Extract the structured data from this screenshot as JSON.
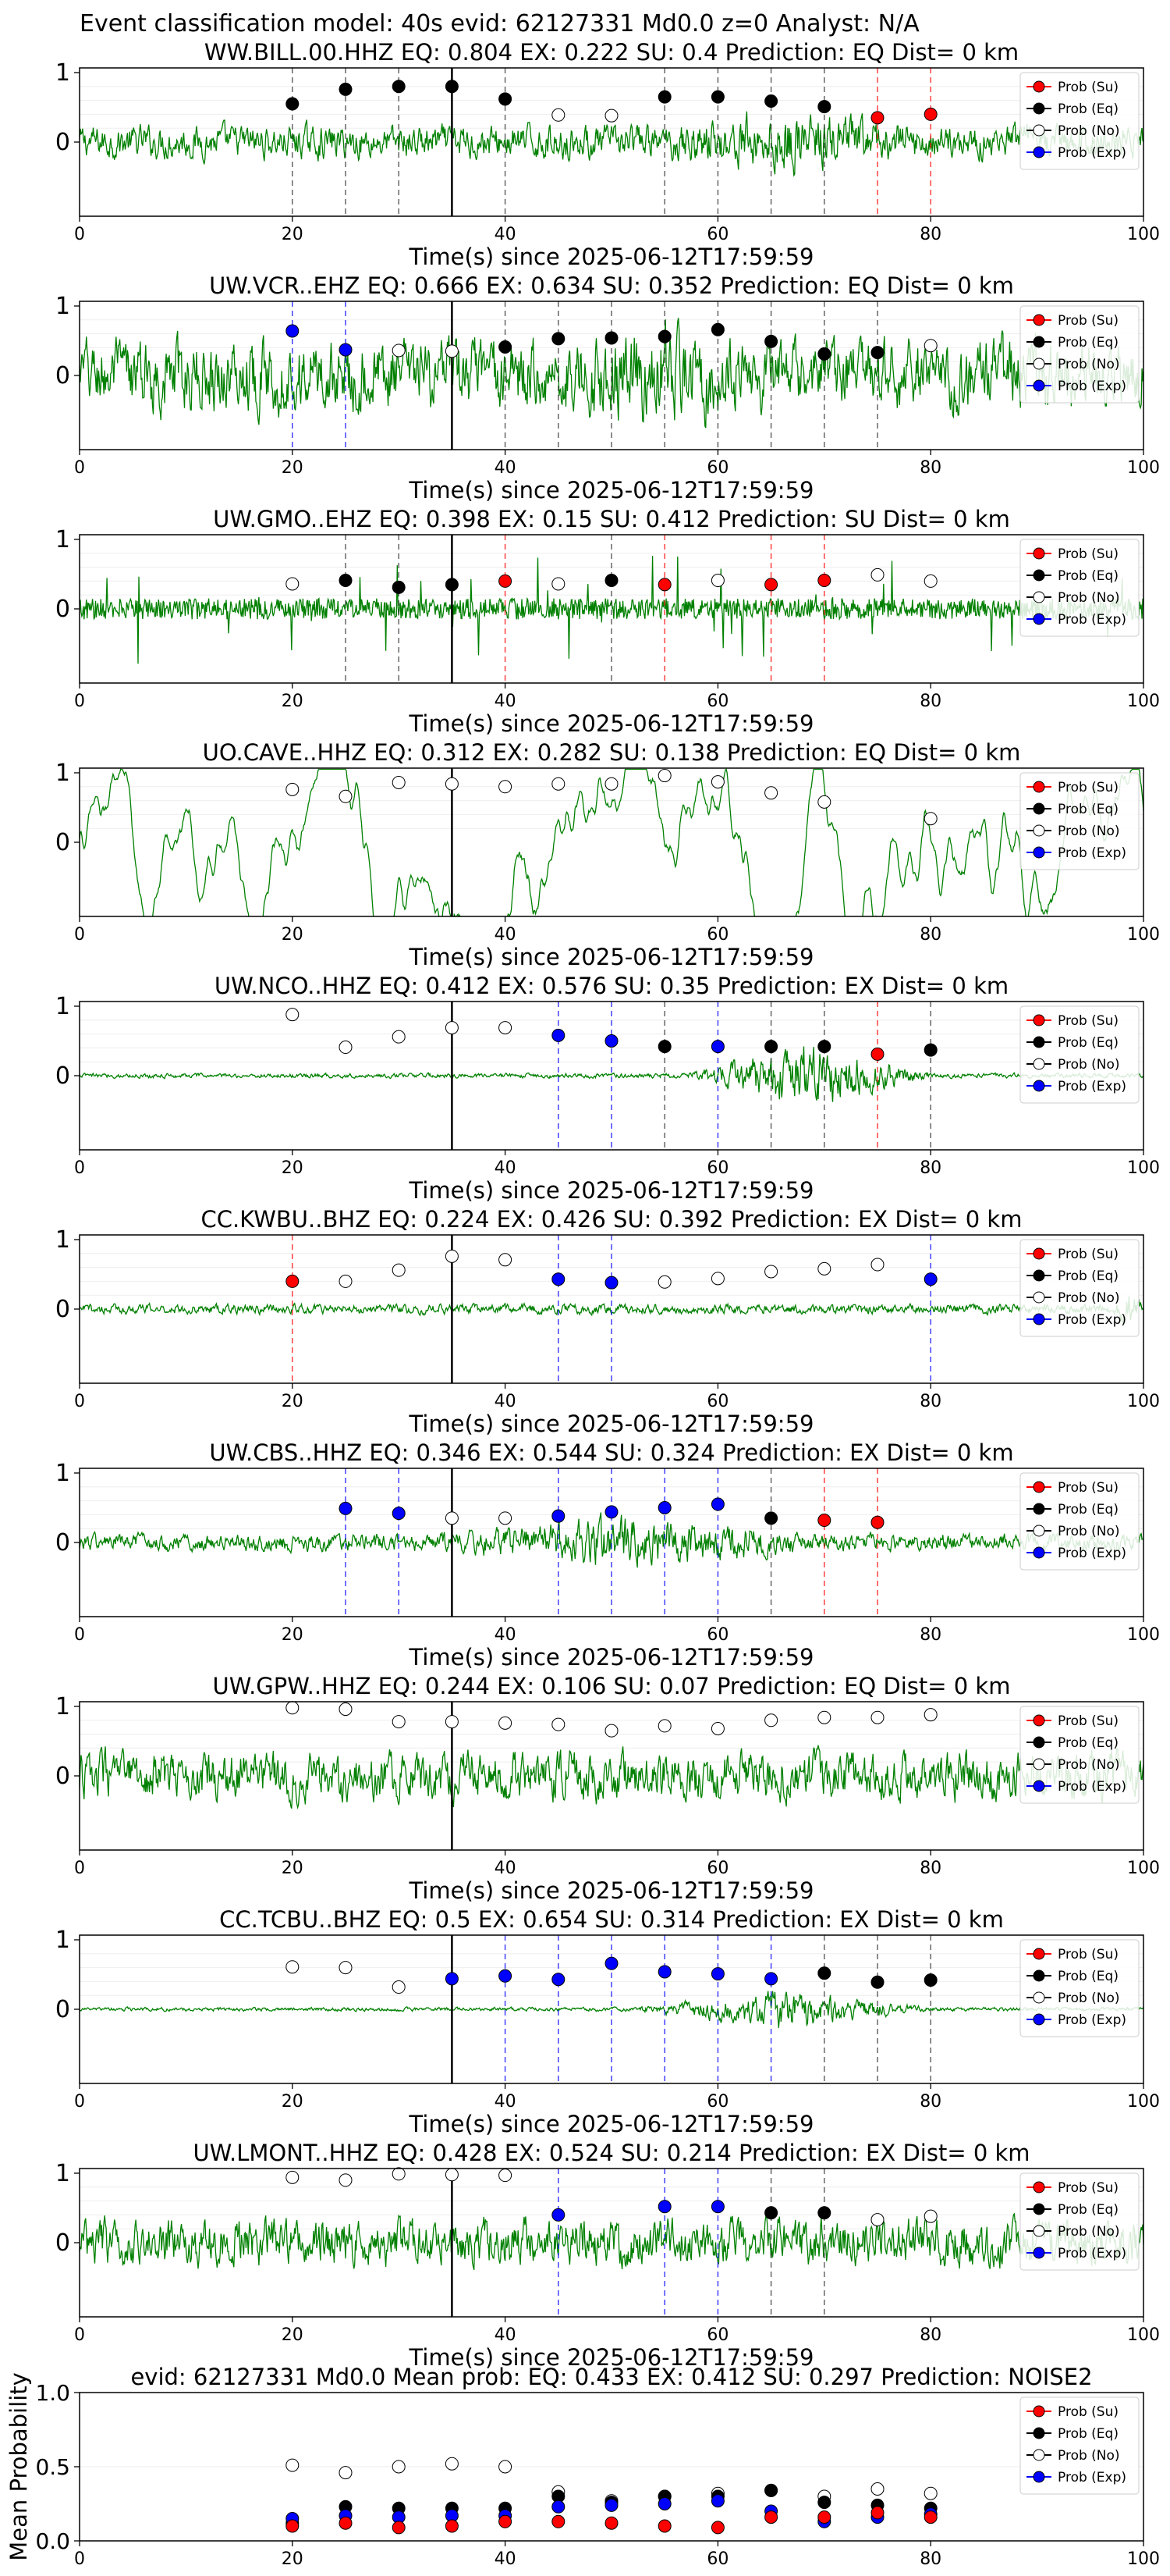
{
  "suptitle": "Event classification model: 40s evid: 62127331 Md0.0 z=0 Analyst: N/A",
  "legend_labels": [
    "Prob (Su)",
    "Prob (Eq)",
    "Prob (No)",
    "Prob (Exp)"
  ],
  "colors": {
    "su": "#ff0000",
    "eq": "#000000",
    "no": "#ffffff",
    "exp": "#0000ff",
    "waveform": "#008000",
    "origin_line": "#000000"
  },
  "chart_data": [
    {
      "type": "line",
      "title": "WW.BILL.00.HHZ   EQ: 0.804  EX: 0.222  SU: 0.4   Prediction: EQ    Dist= 0 km",
      "xlabel": "Time(s) since 2025-06-12T17:59:59",
      "xlim": [
        0,
        100
      ],
      "xticks": [
        0,
        20,
        40,
        60,
        80,
        100
      ],
      "yticks": [
        0,
        1
      ],
      "waveform": {
        "amplitude": 0.35,
        "style": "noisy",
        "burst": [
          55,
          78,
          1.9
        ]
      },
      "origin_time": 35,
      "points": [
        {
          "t": 20,
          "p": 0.55,
          "cls": "eq"
        },
        {
          "t": 25,
          "p": 0.76,
          "cls": "eq"
        },
        {
          "t": 30,
          "p": 0.8,
          "cls": "eq"
        },
        {
          "t": 35,
          "p": 0.8,
          "cls": "eq"
        },
        {
          "t": 40,
          "p": 0.62,
          "cls": "eq"
        },
        {
          "t": 45,
          "p": 0.39,
          "cls": "no"
        },
        {
          "t": 50,
          "p": 0.38,
          "cls": "no"
        },
        {
          "t": 55,
          "p": 0.65,
          "cls": "eq"
        },
        {
          "t": 60,
          "p": 0.65,
          "cls": "eq"
        },
        {
          "t": 65,
          "p": 0.59,
          "cls": "eq"
        },
        {
          "t": 70,
          "p": 0.51,
          "cls": "eq"
        },
        {
          "t": 75,
          "p": 0.35,
          "cls": "su"
        },
        {
          "t": 80,
          "p": 0.4,
          "cls": "su"
        }
      ]
    },
    {
      "type": "line",
      "title": "UW.VCR..EHZ   EQ: 0.666  EX: 0.634  SU: 0.352   Prediction: EQ    Dist= 0 km",
      "xlabel": "Time(s) since 2025-06-12T17:59:59",
      "xlim": [
        0,
        100
      ],
      "xticks": [
        0,
        20,
        40,
        60,
        80,
        100
      ],
      "yticks": [
        0,
        1
      ],
      "waveform": {
        "amplitude": 0.75,
        "style": "noisy",
        "burst": [
          45,
          65,
          1.4
        ]
      },
      "origin_time": 35,
      "points": [
        {
          "t": 20,
          "p": 0.64,
          "cls": "exp"
        },
        {
          "t": 25,
          "p": 0.37,
          "cls": "exp"
        },
        {
          "t": 30,
          "p": 0.36,
          "cls": "no"
        },
        {
          "t": 35,
          "p": 0.35,
          "cls": "no"
        },
        {
          "t": 40,
          "p": 0.41,
          "cls": "eq"
        },
        {
          "t": 45,
          "p": 0.53,
          "cls": "eq"
        },
        {
          "t": 50,
          "p": 0.54,
          "cls": "eq"
        },
        {
          "t": 55,
          "p": 0.56,
          "cls": "eq"
        },
        {
          "t": 60,
          "p": 0.66,
          "cls": "eq"
        },
        {
          "t": 65,
          "p": 0.49,
          "cls": "eq"
        },
        {
          "t": 70,
          "p": 0.31,
          "cls": "eq"
        },
        {
          "t": 75,
          "p": 0.33,
          "cls": "eq"
        },
        {
          "t": 80,
          "p": 0.43,
          "cls": "no"
        }
      ]
    },
    {
      "type": "line",
      "title": "UW.GMO..EHZ   EQ: 0.398  EX: 0.15  SU: 0.412   Prediction: SU    Dist= 0 km",
      "xlabel": "Time(s) since 2025-06-12T17:59:59",
      "xlim": [
        0,
        100
      ],
      "xticks": [
        0,
        20,
        40,
        60,
        80,
        100
      ],
      "yticks": [
        0,
        1
      ],
      "waveform": {
        "amplitude": 0.3,
        "style": "spiky",
        "burst": [
          0,
          0,
          1
        ]
      },
      "origin_time": 35,
      "points": [
        {
          "t": 20,
          "p": 0.36,
          "cls": "no"
        },
        {
          "t": 25,
          "p": 0.41,
          "cls": "eq"
        },
        {
          "t": 30,
          "p": 0.31,
          "cls": "eq"
        },
        {
          "t": 35,
          "p": 0.35,
          "cls": "eq"
        },
        {
          "t": 40,
          "p": 0.4,
          "cls": "su"
        },
        {
          "t": 45,
          "p": 0.36,
          "cls": "no"
        },
        {
          "t": 50,
          "p": 0.41,
          "cls": "eq"
        },
        {
          "t": 55,
          "p": 0.35,
          "cls": "su"
        },
        {
          "t": 60,
          "p": 0.41,
          "cls": "no"
        },
        {
          "t": 65,
          "p": 0.35,
          "cls": "su"
        },
        {
          "t": 70,
          "p": 0.41,
          "cls": "su"
        },
        {
          "t": 75,
          "p": 0.49,
          "cls": "no"
        },
        {
          "t": 80,
          "p": 0.4,
          "cls": "no"
        }
      ]
    },
    {
      "type": "line",
      "title": "UO.CAVE..HHZ   EQ: 0.312  EX: 0.282  SU: 0.138   Prediction: EQ    Dist= 0 km",
      "xlabel": "Time(s) since 2025-06-12T17:59:59",
      "xlim": [
        0,
        100
      ],
      "xticks": [
        0,
        20,
        40,
        60,
        80,
        100
      ],
      "yticks": [
        0,
        1
      ],
      "waveform": {
        "amplitude": 0.45,
        "style": "smooth",
        "burst": [
          33,
          45,
          1.6
        ]
      },
      "origin_time": 35,
      "points": [
        {
          "t": 20,
          "p": 0.76,
          "cls": "no"
        },
        {
          "t": 25,
          "p": 0.66,
          "cls": "no"
        },
        {
          "t": 30,
          "p": 0.86,
          "cls": "no"
        },
        {
          "t": 35,
          "p": 0.84,
          "cls": "no"
        },
        {
          "t": 40,
          "p": 0.8,
          "cls": "no"
        },
        {
          "t": 45,
          "p": 0.84,
          "cls": "no"
        },
        {
          "t": 50,
          "p": 0.84,
          "cls": "no"
        },
        {
          "t": 55,
          "p": 0.96,
          "cls": "no"
        },
        {
          "t": 60,
          "p": 0.87,
          "cls": "no"
        },
        {
          "t": 65,
          "p": 0.71,
          "cls": "no"
        },
        {
          "t": 70,
          "p": 0.58,
          "cls": "no"
        },
        {
          "t": 80,
          "p": 0.34,
          "cls": "no"
        }
      ]
    },
    {
      "type": "line",
      "title": "UW.NCO..HHZ   EQ: 0.412  EX: 0.576  SU: 0.35   Prediction: EX    Dist= 0 km",
      "xlabel": "Time(s) since 2025-06-12T17:59:59",
      "xlim": [
        0,
        100
      ],
      "xticks": [
        0,
        20,
        40,
        60,
        80,
        100
      ],
      "yticks": [
        0,
        1
      ],
      "waveform": {
        "amplitude": 0.05,
        "style": "noisy",
        "burst": [
          57,
          80,
          14
        ]
      },
      "origin_time": 35,
      "points": [
        {
          "t": 20,
          "p": 0.88,
          "cls": "no"
        },
        {
          "t": 25,
          "p": 0.41,
          "cls": "no"
        },
        {
          "t": 30,
          "p": 0.56,
          "cls": "no"
        },
        {
          "t": 35,
          "p": 0.69,
          "cls": "no"
        },
        {
          "t": 40,
          "p": 0.69,
          "cls": "no"
        },
        {
          "t": 45,
          "p": 0.58,
          "cls": "exp"
        },
        {
          "t": 50,
          "p": 0.5,
          "cls": "exp"
        },
        {
          "t": 55,
          "p": 0.42,
          "cls": "eq"
        },
        {
          "t": 60,
          "p": 0.42,
          "cls": "exp"
        },
        {
          "t": 65,
          "p": 0.42,
          "cls": "eq"
        },
        {
          "t": 70,
          "p": 0.42,
          "cls": "eq"
        },
        {
          "t": 75,
          "p": 0.31,
          "cls": "su"
        },
        {
          "t": 80,
          "p": 0.37,
          "cls": "eq"
        }
      ]
    },
    {
      "type": "line",
      "title": "CC.KWBU..BHZ   EQ: 0.224  EX: 0.426  SU: 0.392   Prediction: EX    Dist= 0 km",
      "xlabel": "Time(s) since 2025-06-12T17:59:59",
      "xlim": [
        0,
        100
      ],
      "xticks": [
        0,
        20,
        40,
        60,
        80,
        100
      ],
      "yticks": [
        0,
        1
      ],
      "waveform": {
        "amplitude": 0.1,
        "style": "noisy",
        "burst": [
          97,
          100,
          4
        ]
      },
      "origin_time": 35,
      "points": [
        {
          "t": 20,
          "p": 0.4,
          "cls": "su"
        },
        {
          "t": 25,
          "p": 0.4,
          "cls": "no"
        },
        {
          "t": 30,
          "p": 0.56,
          "cls": "no"
        },
        {
          "t": 35,
          "p": 0.76,
          "cls": "no"
        },
        {
          "t": 40,
          "p": 0.71,
          "cls": "no"
        },
        {
          "t": 45,
          "p": 0.43,
          "cls": "exp"
        },
        {
          "t": 50,
          "p": 0.38,
          "cls": "exp"
        },
        {
          "t": 55,
          "p": 0.39,
          "cls": "no"
        },
        {
          "t": 60,
          "p": 0.44,
          "cls": "no"
        },
        {
          "t": 65,
          "p": 0.54,
          "cls": "no"
        },
        {
          "t": 70,
          "p": 0.58,
          "cls": "no"
        },
        {
          "t": 75,
          "p": 0.64,
          "cls": "no"
        },
        {
          "t": 80,
          "p": 0.43,
          "cls": "exp"
        }
      ]
    },
    {
      "type": "line",
      "title": "UW.CBS..HHZ   EQ: 0.346  EX: 0.544  SU: 0.324   Prediction: EX    Dist= 0 km",
      "xlabel": "Time(s) since 2025-06-12T17:59:59",
      "xlim": [
        0,
        100
      ],
      "xticks": [
        0,
        20,
        40,
        60,
        80,
        100
      ],
      "yticks": [
        0,
        1
      ],
      "waveform": {
        "amplitude": 0.18,
        "style": "noisy",
        "burst": [
          33,
          70,
          3
        ]
      },
      "origin_time": 35,
      "points": [
        {
          "t": 25,
          "p": 0.49,
          "cls": "exp"
        },
        {
          "t": 30,
          "p": 0.42,
          "cls": "exp"
        },
        {
          "t": 35,
          "p": 0.35,
          "cls": "no"
        },
        {
          "t": 40,
          "p": 0.35,
          "cls": "no"
        },
        {
          "t": 45,
          "p": 0.38,
          "cls": "exp"
        },
        {
          "t": 50,
          "p": 0.44,
          "cls": "exp"
        },
        {
          "t": 55,
          "p": 0.5,
          "cls": "exp"
        },
        {
          "t": 60,
          "p": 0.55,
          "cls": "exp"
        },
        {
          "t": 65,
          "p": 0.35,
          "cls": "eq"
        },
        {
          "t": 70,
          "p": 0.32,
          "cls": "su"
        },
        {
          "t": 75,
          "p": 0.29,
          "cls": "su"
        }
      ]
    },
    {
      "type": "line",
      "title": "UW.GPW..HHZ   EQ: 0.244  EX: 0.106  SU: 0.07   Prediction: EQ    Dist= 0 km",
      "xlabel": "Time(s) since 2025-06-12T17:59:59",
      "xlim": [
        0,
        100
      ],
      "xticks": [
        0,
        20,
        40,
        60,
        80,
        100
      ],
      "yticks": [
        0,
        1
      ],
      "waveform": {
        "amplitude": 0.5,
        "style": "noisy",
        "burst": [
          0,
          0,
          1
        ]
      },
      "origin_time": 35,
      "points": [
        {
          "t": 20,
          "p": 0.98,
          "cls": "no"
        },
        {
          "t": 25,
          "p": 0.96,
          "cls": "no"
        },
        {
          "t": 30,
          "p": 0.78,
          "cls": "no"
        },
        {
          "t": 35,
          "p": 0.78,
          "cls": "no"
        },
        {
          "t": 40,
          "p": 0.76,
          "cls": "no"
        },
        {
          "t": 45,
          "p": 0.74,
          "cls": "no"
        },
        {
          "t": 50,
          "p": 0.65,
          "cls": "no"
        },
        {
          "t": 55,
          "p": 0.72,
          "cls": "no"
        },
        {
          "t": 60,
          "p": 0.68,
          "cls": "no"
        },
        {
          "t": 65,
          "p": 0.8,
          "cls": "no"
        },
        {
          "t": 70,
          "p": 0.84,
          "cls": "no"
        },
        {
          "t": 75,
          "p": 0.84,
          "cls": "no"
        },
        {
          "t": 80,
          "p": 0.88,
          "cls": "no"
        }
      ]
    },
    {
      "type": "line",
      "title": "CC.TCBU..BHZ   EQ: 0.5  EX: 0.654  SU: 0.314   Prediction: EX    Dist= 0 km",
      "xlabel": "Time(s) since 2025-06-12T17:59:59",
      "xlim": [
        0,
        100
      ],
      "xticks": [
        0,
        20,
        40,
        60,
        80,
        100
      ],
      "yticks": [
        0,
        1
      ],
      "waveform": {
        "amplitude": 0.04,
        "style": "noisy",
        "burst": [
          52,
          80,
          10
        ]
      },
      "origin_time": 35,
      "points": [
        {
          "t": 20,
          "p": 0.61,
          "cls": "no"
        },
        {
          "t": 25,
          "p": 0.6,
          "cls": "no"
        },
        {
          "t": 30,
          "p": 0.32,
          "cls": "no"
        },
        {
          "t": 35,
          "p": 0.44,
          "cls": "exp"
        },
        {
          "t": 40,
          "p": 0.48,
          "cls": "exp"
        },
        {
          "t": 45,
          "p": 0.43,
          "cls": "exp"
        },
        {
          "t": 50,
          "p": 0.66,
          "cls": "exp"
        },
        {
          "t": 55,
          "p": 0.54,
          "cls": "exp"
        },
        {
          "t": 60,
          "p": 0.51,
          "cls": "exp"
        },
        {
          "t": 65,
          "p": 0.44,
          "cls": "exp"
        },
        {
          "t": 70,
          "p": 0.52,
          "cls": "eq"
        },
        {
          "t": 75,
          "p": 0.39,
          "cls": "eq"
        },
        {
          "t": 80,
          "p": 0.42,
          "cls": "eq"
        }
      ]
    },
    {
      "type": "line",
      "title": "UW.LMONT..HHZ   EQ: 0.428  EX: 0.524  SU: 0.214   Prediction: EX    Dist= 0 km",
      "xlabel": "Time(s) since 2025-06-12T17:59:59",
      "xlim": [
        0,
        100
      ],
      "xticks": [
        0,
        20,
        40,
        60,
        80,
        100
      ],
      "yticks": [
        0,
        1
      ],
      "waveform": {
        "amplitude": 0.5,
        "style": "noisy",
        "burst": [
          0,
          0,
          1
        ]
      },
      "origin_time": 35,
      "points": [
        {
          "t": 20,
          "p": 0.94,
          "cls": "no"
        },
        {
          "t": 25,
          "p": 0.9,
          "cls": "no"
        },
        {
          "t": 30,
          "p": 0.99,
          "cls": "no"
        },
        {
          "t": 35,
          "p": 0.98,
          "cls": "no"
        },
        {
          "t": 40,
          "p": 0.97,
          "cls": "no"
        },
        {
          "t": 45,
          "p": 0.4,
          "cls": "exp"
        },
        {
          "t": 55,
          "p": 0.52,
          "cls": "exp"
        },
        {
          "t": 60,
          "p": 0.52,
          "cls": "exp"
        },
        {
          "t": 65,
          "p": 0.43,
          "cls": "eq"
        },
        {
          "t": 70,
          "p": 0.43,
          "cls": "eq"
        },
        {
          "t": 75,
          "p": 0.33,
          "cls": "no"
        },
        {
          "t": 80,
          "p": 0.38,
          "cls": "no"
        }
      ]
    },
    {
      "type": "scatter",
      "title": "evid: 62127331  Md0.0   Mean prob:   EQ: 0.433  EX: 0.412  SU: 0.297   Prediction: NOISE2",
      "ylabel": "Mean Probability",
      "xlim": [
        0,
        100
      ],
      "ylim": [
        0,
        1
      ],
      "xticks": [
        0,
        20,
        40,
        60,
        80,
        100
      ],
      "yticks": [
        0.0,
        0.5,
        1.0
      ],
      "series": [
        {
          "name": "Prob (No)",
          "cls": "no",
          "x": [
            20,
            25,
            30,
            35,
            40,
            45,
            50,
            55,
            60,
            65,
            70,
            75,
            80
          ],
          "y": [
            0.51,
            0.46,
            0.5,
            0.52,
            0.5,
            0.33,
            0.27,
            0.3,
            0.32,
            0.34,
            0.3,
            0.35,
            0.32
          ]
        },
        {
          "name": "Prob (Eq)",
          "cls": "eq",
          "x": [
            20,
            25,
            30,
            35,
            40,
            45,
            50,
            55,
            60,
            65,
            70,
            75,
            80
          ],
          "y": [
            0.12,
            0.23,
            0.22,
            0.22,
            0.22,
            0.3,
            0.26,
            0.3,
            0.3,
            0.34,
            0.26,
            0.24,
            0.22
          ]
        },
        {
          "name": "Prob (Exp)",
          "cls": "exp",
          "x": [
            20,
            25,
            30,
            35,
            40,
            45,
            50,
            55,
            60,
            65,
            70,
            75,
            80
          ],
          "y": [
            0.15,
            0.17,
            0.16,
            0.17,
            0.17,
            0.23,
            0.24,
            0.25,
            0.27,
            0.2,
            0.13,
            0.16,
            0.18
          ]
        },
        {
          "name": "Prob (Su)",
          "cls": "su",
          "x": [
            20,
            25,
            30,
            35,
            40,
            45,
            50,
            55,
            60,
            65,
            70,
            75,
            80
          ],
          "y": [
            0.1,
            0.12,
            0.09,
            0.1,
            0.13,
            0.13,
            0.12,
            0.1,
            0.09,
            0.16,
            0.16,
            0.19,
            0.16
          ]
        }
      ]
    }
  ]
}
